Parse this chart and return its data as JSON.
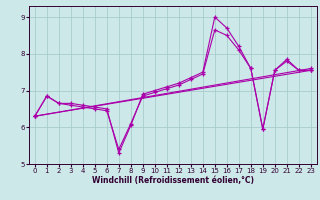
{
  "xlabel": "Windchill (Refroidissement éolien,°C)",
  "bg_color": "#cce8e8",
  "grid_color": "#aacccc",
  "line_color": "#aa00aa",
  "spine_color": "#330033",
  "xlim": [
    -0.5,
    23.5
  ],
  "ylim": [
    5.0,
    9.3
  ],
  "xticks": [
    0,
    1,
    2,
    3,
    4,
    5,
    6,
    7,
    8,
    9,
    10,
    11,
    12,
    13,
    14,
    15,
    16,
    17,
    18,
    19,
    20,
    21,
    22,
    23
  ],
  "yticks": [
    5,
    6,
    7,
    8,
    9
  ],
  "series": [
    {
      "x": [
        0,
        1,
        2,
        3,
        4,
        5,
        6,
        7,
        8,
        9,
        10,
        11,
        12,
        13,
        14,
        15,
        16,
        17,
        18,
        19,
        20,
        21,
        22,
        23
      ],
      "y": [
        6.3,
        6.85,
        6.65,
        6.65,
        6.6,
        6.55,
        6.5,
        5.3,
        6.05,
        6.9,
        7.0,
        7.1,
        7.2,
        7.35,
        7.5,
        9.0,
        8.7,
        8.2,
        7.6,
        5.95,
        7.55,
        7.8,
        7.55,
        7.55
      ]
    },
    {
      "x": [
        0,
        1,
        2,
        3,
        4,
        5,
        6,
        7,
        8,
        9,
        10,
        11,
        12,
        13,
        14,
        15,
        16,
        17,
        18,
        19,
        20,
        21,
        22,
        23
      ],
      "y": [
        6.3,
        6.85,
        6.65,
        6.6,
        6.55,
        6.5,
        6.45,
        5.4,
        6.1,
        6.85,
        6.95,
        7.05,
        7.15,
        7.3,
        7.45,
        8.65,
        8.5,
        8.1,
        7.6,
        5.95,
        7.55,
        7.85,
        7.55,
        7.55
      ]
    },
    {
      "x": [
        0,
        23
      ],
      "y": [
        6.3,
        7.55
      ]
    },
    {
      "x": [
        0,
        23
      ],
      "y": [
        6.3,
        7.6
      ]
    }
  ]
}
